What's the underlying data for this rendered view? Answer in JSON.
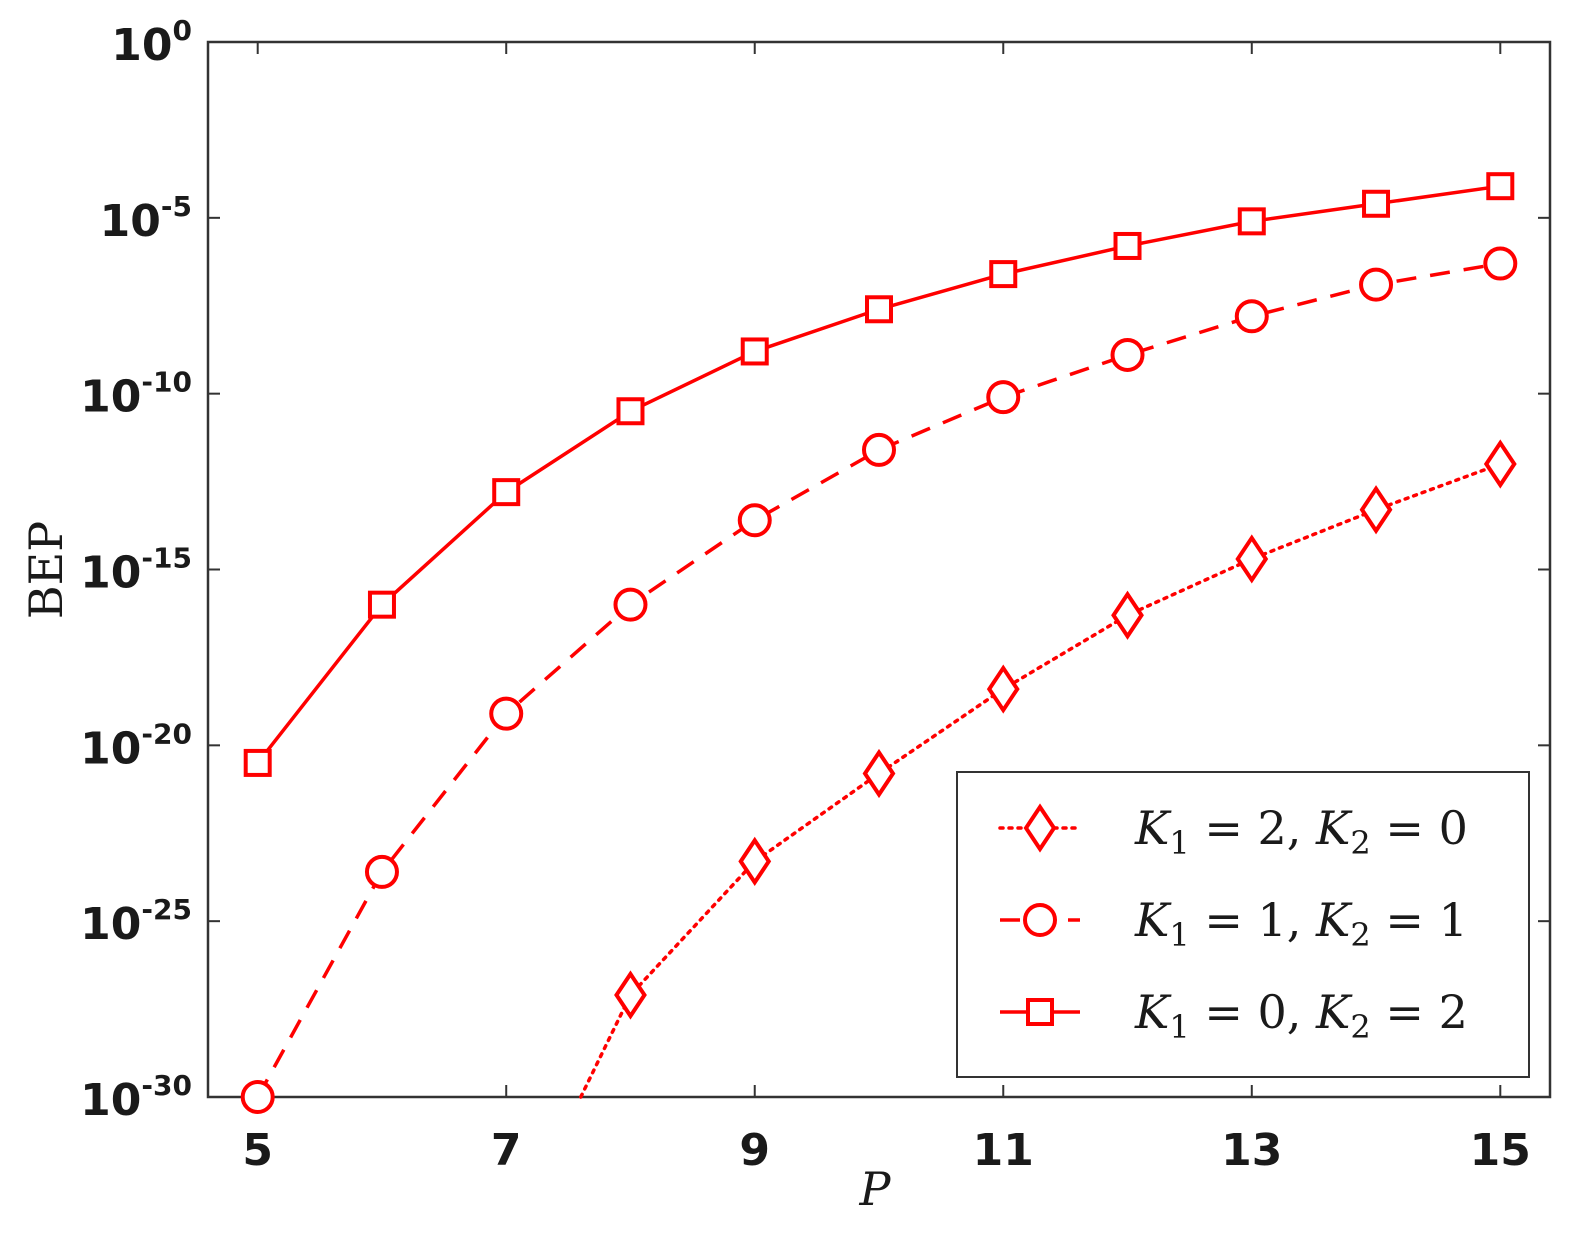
{
  "chart_data": {
    "type": "line",
    "xlabel": "P",
    "ylabel": "BEP",
    "xlim": [
      4.6,
      15.4
    ],
    "ylim_log10": [
      -30,
      0
    ],
    "yscale": "log",
    "x_ticks": [
      5,
      7,
      9,
      11,
      13,
      15
    ],
    "y_ticks": [
      {
        "base": "10",
        "exp": "0",
        "value_log10": 0
      },
      {
        "base": "10",
        "exp": "-5",
        "value_log10": -5
      },
      {
        "base": "10",
        "exp": "-10",
        "value_log10": -10
      },
      {
        "base": "10",
        "exp": "-15",
        "value_log10": -15
      },
      {
        "base": "10",
        "exp": "-20",
        "value_log10": -20
      },
      {
        "base": "10",
        "exp": "-25",
        "value_log10": -25
      },
      {
        "base": "10",
        "exp": "-30",
        "value_log10": -30
      }
    ],
    "grid": false,
    "legend_position": "bottom-right",
    "color": "#ff0000",
    "series": [
      {
        "legend": {
          "K1_label": "K",
          "K1_sub": "1",
          "K1_val": "= 2,",
          "K2_label": "K",
          "K2_sub": "2",
          "K2_val": "= 0"
        },
        "marker": "diamond",
        "linestyle": "dotted",
        "x": [
          7.6,
          8,
          9,
          10,
          11,
          12,
          13,
          14,
          15
        ],
        "y_log10": [
          -30,
          -27.1,
          -23.3,
          -20.8,
          -18.4,
          -16.3,
          -14.7,
          -13.3,
          -12.0
        ]
      },
      {
        "legend": {
          "K1_label": "K",
          "K1_sub": "1",
          "K1_val": "= 1,",
          "K2_label": "K",
          "K2_sub": "2",
          "K2_val": "= 1"
        },
        "marker": "circle",
        "linestyle": "dashed",
        "x": [
          5,
          6,
          7,
          8,
          9,
          10,
          11,
          12,
          13,
          14,
          15
        ],
        "y_log10": [
          -30.0,
          -23.6,
          -19.1,
          -16.0,
          -13.6,
          -11.6,
          -10.1,
          -8.9,
          -7.8,
          -6.9,
          -6.3
        ]
      },
      {
        "legend": {
          "K1_label": "K",
          "K1_sub": "1",
          "K1_val": "= 0,",
          "K2_label": "K",
          "K2_sub": "2",
          "K2_val": "= 2"
        },
        "marker": "square",
        "linestyle": "solid",
        "x": [
          5,
          6,
          7,
          8,
          9,
          10,
          11,
          12,
          13,
          14,
          15
        ],
        "y_log10": [
          -20.5,
          -16.0,
          -12.8,
          -10.5,
          -8.8,
          -7.6,
          -6.6,
          -5.8,
          -5.1,
          -4.6,
          -4.1
        ]
      }
    ]
  }
}
